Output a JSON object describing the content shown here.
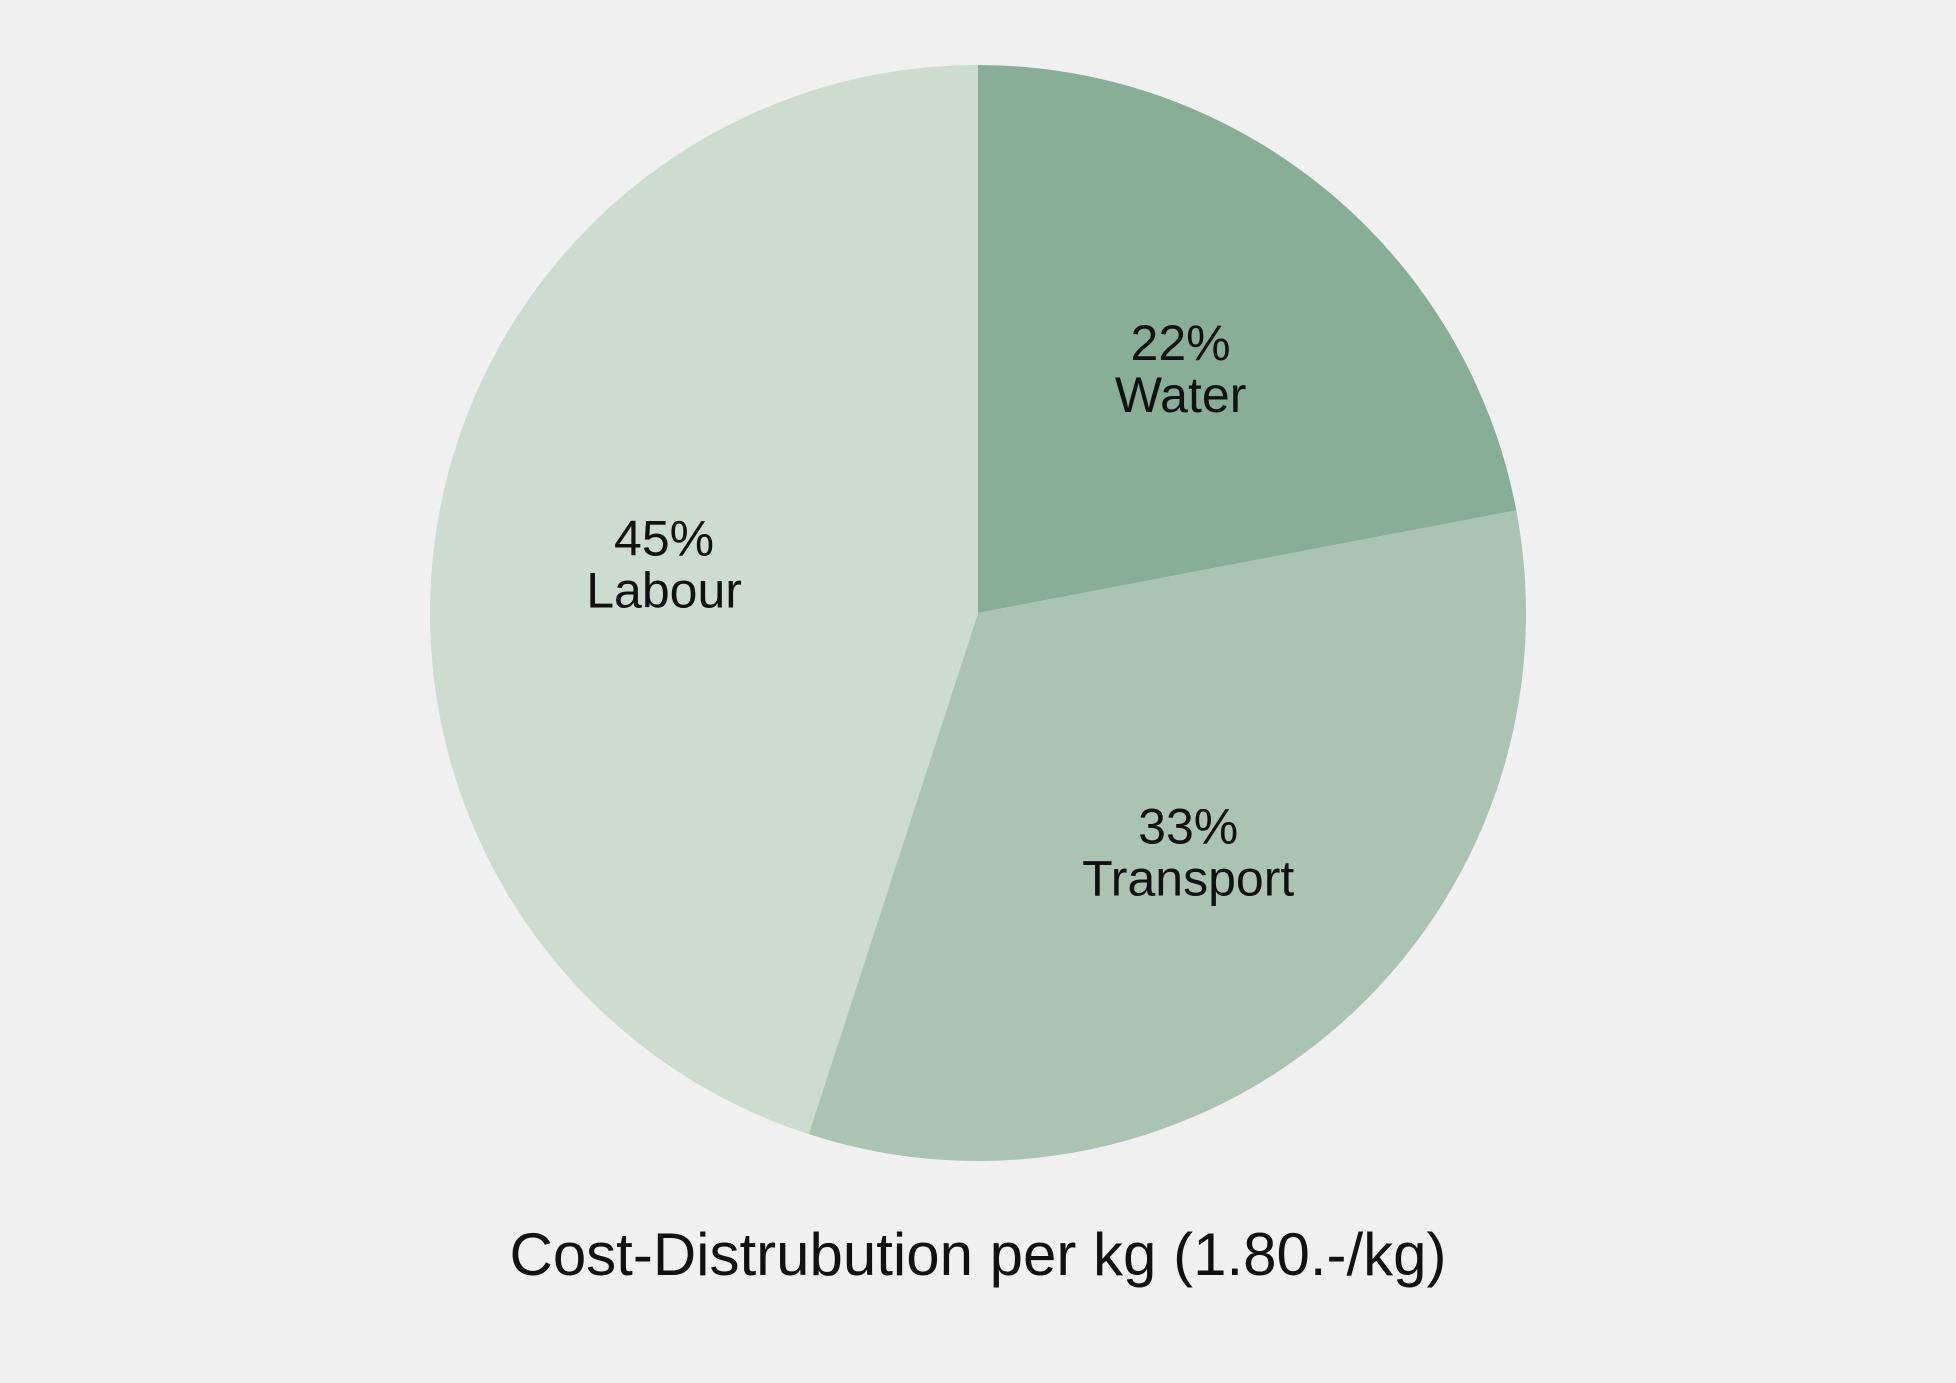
{
  "chart_data": {
    "type": "pie",
    "title": "Cost-Distrubution per kg (1.80.-/kg)",
    "slices": [
      {
        "label": "Water",
        "value": 22,
        "percent_label": "22%",
        "color": "#88ae98"
      },
      {
        "label": "Transport",
        "value": 33,
        "percent_label": "33%",
        "color": "#aac3b3"
      },
      {
        "label": "Labour",
        "value": 45,
        "percent_label": "45%",
        "color": "#cddbd1"
      }
    ],
    "start": "12 o'clock",
    "direction": "clockwise",
    "legend": "none"
  }
}
